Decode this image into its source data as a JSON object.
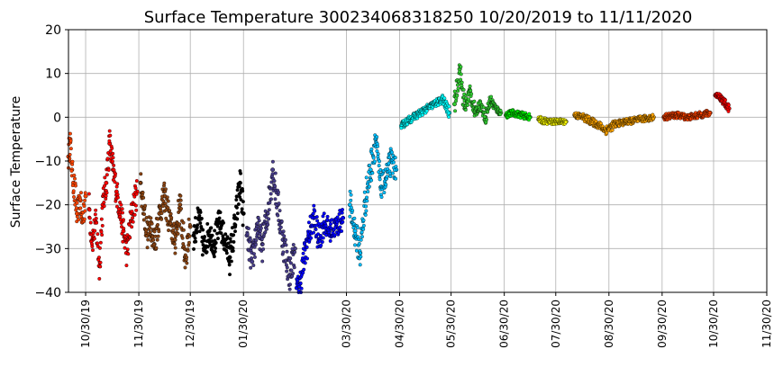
{
  "chart_data": {
    "type": "scatter",
    "title": "Surface Temperature 300234068318250  10/20/2019 to 11/11/2020",
    "xlabel": "",
    "ylabel": "Surface Temperature",
    "ylim": [
      -40,
      20
    ],
    "yticks": [
      "20",
      "10",
      "0",
      "−10",
      "−20",
      "−30",
      "−40"
    ],
    "ytick_values": [
      20,
      10,
      0,
      -10,
      -20,
      -30,
      -40
    ],
    "xlim": [
      "2019-10-20",
      "2020-11-30"
    ],
    "xticks": [
      "10/30/19",
      "11/30/19",
      "12/30/19",
      "01/30/20",
      "03/30/20",
      "04/30/20",
      "05/30/20",
      "06/30/20",
      "07/30/20",
      "08/30/20",
      "09/30/20",
      "10/30/20",
      "11/30/20"
    ],
    "xtick_dates": [
      "2019-10-30",
      "2019-11-30",
      "2019-12-30",
      "2020-01-30",
      "2020-03-30",
      "2020-04-30",
      "2020-05-30",
      "2020-06-30",
      "2020-07-30",
      "2020-08-30",
      "2020-09-30",
      "2020-10-30",
      "2020-11-30"
    ],
    "grid": true,
    "series": [
      {
        "color": "#ff4500",
        "points": [
          [
            "2019-10-20",
            -9
          ],
          [
            "2019-10-21",
            -5
          ],
          [
            "2019-10-22",
            -12
          ],
          [
            "2019-10-23",
            -15
          ],
          [
            "2019-10-25",
            -22
          ],
          [
            "2019-10-27",
            -19
          ],
          [
            "2019-10-28",
            -24
          ],
          [
            "2019-10-30",
            -18
          ]
        ]
      },
      {
        "color": "#ff0000",
        "points": [
          [
            "2019-11-01",
            -21
          ],
          [
            "2019-11-03",
            -28
          ],
          [
            "2019-11-05",
            -24
          ],
          [
            "2019-11-07",
            -34
          ],
          [
            "2019-11-09",
            -20
          ],
          [
            "2019-11-11",
            -15
          ],
          [
            "2019-11-13",
            -6
          ],
          [
            "2019-11-15",
            -12
          ],
          [
            "2019-11-17",
            -17
          ],
          [
            "2019-11-19",
            -21
          ],
          [
            "2019-11-21",
            -26
          ],
          [
            "2019-11-23",
            -31
          ],
          [
            "2019-11-26",
            -22
          ],
          [
            "2019-11-29",
            -17
          ]
        ]
      },
      {
        "color": "#8b4513",
        "points": [
          [
            "2019-12-01",
            -15
          ],
          [
            "2019-12-03",
            -21
          ],
          [
            "2019-12-05",
            -27
          ],
          [
            "2019-12-07",
            -24
          ],
          [
            "2019-12-09",
            -29
          ],
          [
            "2019-12-12",
            -22
          ],
          [
            "2019-12-15",
            -18
          ],
          [
            "2019-12-18",
            -24
          ],
          [
            "2019-12-21",
            -28
          ],
          [
            "2019-12-24",
            -20
          ],
          [
            "2019-12-27",
            -32
          ],
          [
            "2019-12-30",
            -25
          ]
        ]
      },
      {
        "color": "#000000",
        "points": [
          [
            "2020-01-01",
            -27
          ],
          [
            "2020-01-04",
            -23
          ],
          [
            "2020-01-07",
            -30
          ],
          [
            "2020-01-10",
            -26
          ],
          [
            "2020-01-13",
            -29
          ],
          [
            "2020-01-16",
            -24
          ],
          [
            "2020-01-19",
            -28
          ],
          [
            "2020-01-22",
            -32
          ],
          [
            "2020-01-25",
            -25
          ],
          [
            "2020-01-28",
            -15
          ],
          [
            "2020-01-30",
            -22
          ]
        ]
      },
      {
        "color": "#483d8b",
        "points": [
          [
            "2020-02-01",
            -27
          ],
          [
            "2020-02-04",
            -33
          ],
          [
            "2020-02-07",
            -25
          ],
          [
            "2020-02-10",
            -29
          ],
          [
            "2020-02-13",
            -22
          ],
          [
            "2020-02-16",
            -12
          ],
          [
            "2020-02-19",
            -20
          ],
          [
            "2020-02-22",
            -28
          ],
          [
            "2020-02-26",
            -36
          ],
          [
            "2020-02-29",
            -30
          ]
        ]
      },
      {
        "color": "#0000ff",
        "points": [
          [
            "2020-03-01",
            -39
          ],
          [
            "2020-03-03",
            -38
          ],
          [
            "2020-03-05",
            -33
          ],
          [
            "2020-03-08",
            -27
          ],
          [
            "2020-03-11",
            -23
          ],
          [
            "2020-03-14",
            -28
          ],
          [
            "2020-03-17",
            -24
          ],
          [
            "2020-03-20",
            -26
          ],
          [
            "2020-03-24",
            -25
          ],
          [
            "2020-03-28",
            -23
          ]
        ]
      },
      {
        "color": "#00bfff",
        "points": [
          [
            "2020-04-01",
            -20
          ],
          [
            "2020-04-04",
            -26
          ],
          [
            "2020-04-07",
            -31
          ],
          [
            "2020-04-10",
            -19
          ],
          [
            "2020-04-13",
            -12
          ],
          [
            "2020-04-16",
            -5
          ],
          [
            "2020-04-19",
            -16
          ],
          [
            "2020-04-22",
            -14
          ],
          [
            "2020-04-25",
            -10
          ],
          [
            "2020-04-28",
            -12
          ]
        ]
      },
      {
        "color": "#00ffff",
        "points": [
          [
            "2020-05-01",
            -2
          ],
          [
            "2020-05-04",
            -1
          ],
          [
            "2020-05-08",
            0
          ],
          [
            "2020-05-12",
            1
          ],
          [
            "2020-05-16",
            2
          ],
          [
            "2020-05-20",
            3
          ],
          [
            "2020-05-25",
            4
          ],
          [
            "2020-05-29",
            1
          ]
        ]
      },
      {
        "color": "#32cd32",
        "points": [
          [
            "2020-06-01",
            3
          ],
          [
            "2020-06-04",
            11
          ],
          [
            "2020-06-07",
            2
          ],
          [
            "2020-06-10",
            6
          ],
          [
            "2020-06-13",
            1
          ],
          [
            "2020-06-16",
            3
          ],
          [
            "2020-06-19",
            0
          ],
          [
            "2020-06-22",
            4
          ],
          [
            "2020-06-25",
            2
          ],
          [
            "2020-06-28",
            1
          ]
        ]
      },
      {
        "color": "#00ff00",
        "points": [
          [
            "2020-07-01",
            0.5
          ],
          [
            "2020-07-05",
            1
          ],
          [
            "2020-07-10",
            0.5
          ],
          [
            "2020-07-15",
            0
          ]
        ]
      },
      {
        "color": "#ffff00",
        "points": [
          [
            "2020-07-20",
            -0.5
          ],
          [
            "2020-07-25",
            -1
          ],
          [
            "2020-07-30",
            -1
          ],
          [
            "2020-08-05",
            -1
          ]
        ]
      },
      {
        "color": "#ffa500",
        "points": [
          [
            "2020-08-10",
            0.5
          ],
          [
            "2020-08-15",
            0
          ],
          [
            "2020-08-20",
            -1
          ],
          [
            "2020-08-25",
            -2
          ],
          [
            "2020-08-28",
            -3
          ],
          [
            "2020-09-03",
            -1.5
          ],
          [
            "2020-09-10",
            -1
          ],
          [
            "2020-09-17",
            -0.5
          ],
          [
            "2020-09-25",
            0
          ]
        ]
      },
      {
        "color": "#ff4500",
        "points": [
          [
            "2020-10-01",
            0
          ],
          [
            "2020-10-08",
            0.5
          ],
          [
            "2020-10-15",
            0
          ],
          [
            "2020-10-22",
            0.5
          ],
          [
            "2020-10-28",
            1
          ]
        ]
      },
      {
        "color": "#ff0000",
        "points": [
          [
            "2020-10-31",
            5
          ],
          [
            "2020-11-02",
            5
          ],
          [
            "2020-11-04",
            4
          ],
          [
            "2020-11-06",
            3
          ],
          [
            "2020-11-08",
            2
          ]
        ]
      }
    ]
  }
}
